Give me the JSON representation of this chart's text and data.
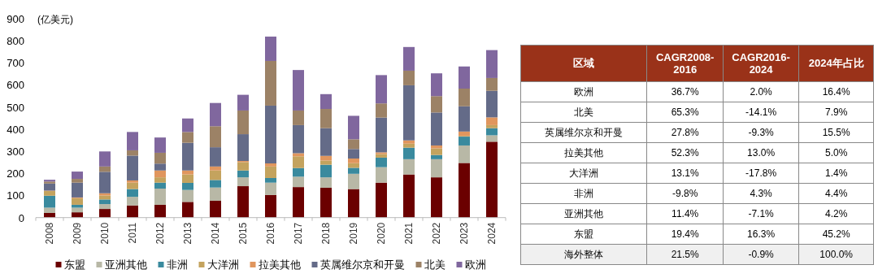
{
  "chart_data": [
    {
      "type": "bar",
      "stacked": true,
      "ylabel": "(亿美元)",
      "ylim": [
        0,
        900
      ],
      "yticks": [
        0,
        100,
        200,
        300,
        400,
        500,
        600,
        700,
        800,
        900
      ],
      "legend": "bottom",
      "grid": false,
      "categories": [
        "2008",
        "2009",
        "2010",
        "2011",
        "2012",
        "2013",
        "2014",
        "2015",
        "2016",
        "2017",
        "2018",
        "2019",
        "2020",
        "2021",
        "2022",
        "2023",
        "2024"
      ],
      "series": [
        {
          "name": "东盟",
          "color": "#6b0000",
          "values": [
            21,
            24,
            39,
            55,
            58,
            71,
            76,
            142,
            102,
            138,
            135,
            129,
            158,
            195,
            182,
            247,
            343
          ]
        },
        {
          "name": "亚洲其他",
          "color": "#b8b8a6",
          "values": [
            24,
            21,
            22,
            39,
            73,
            54,
            60,
            40,
            56,
            47,
            47,
            69,
            70,
            69,
            82,
            79,
            29
          ]
        },
        {
          "name": "非洲",
          "color": "#3a8a9e",
          "values": [
            54,
            13,
            21,
            35,
            27,
            32,
            34,
            31,
            21,
            39,
            57,
            27,
            43,
            52,
            19,
            40,
            32
          ]
        },
        {
          "name": "大洋洲",
          "color": "#c4a35e",
          "values": [
            21,
            30,
            18,
            29,
            24,
            38,
            43,
            38,
            52,
            53,
            19,
            21,
            16,
            18,
            30,
            3,
            14
          ]
        },
        {
          "name": "拉美其他",
          "color": "#e0965e",
          "values": [
            2,
            3,
            10,
            10,
            31,
            18,
            18,
            5,
            14,
            14,
            21,
            21,
            8,
            15,
            13,
            20,
            35
          ]
        },
        {
          "name": "英属维尔京和开曼",
          "color": "#646b88",
          "values": [
            32,
            67,
            97,
            112,
            31,
            125,
            87,
            121,
            261,
            127,
            125,
            43,
            157,
            249,
            149,
            114,
            120
          ]
        },
        {
          "name": "北美",
          "color": "#9c8266",
          "values": [
            9,
            17,
            24,
            24,
            49,
            49,
            95,
            107,
            202,
            66,
            87,
            44,
            64,
            66,
            74,
            80,
            58
          ]
        },
        {
          "name": "欧洲",
          "color": "#80679e",
          "values": [
            8,
            33,
            68,
            83,
            69,
            61,
            105,
            71,
            110,
            183,
            67,
            106,
            128,
            107,
            103,
            100,
            126
          ]
        }
      ]
    },
    {
      "type": "other",
      "ylabel": "区域",
      "color": "#9a3219",
      "categories": [
        "CAGR2008-2016",
        "CAGR2016-2024",
        "2024年占比"
      ],
      "y_categories": [
        "欧洲",
        "北美",
        "英属维尔京和开曼",
        "拉美其他",
        "大洋洲",
        "非洲",
        "亚洲其他",
        "东盟",
        "海外整体"
      ],
      "cell_labels": [
        [
          "36.7%",
          "2.0%",
          "16.4%"
        ],
        [
          "65.3%",
          "-14.1%",
          "7.9%"
        ],
        [
          "27.8%",
          "-9.3%",
          "15.5%"
        ],
        [
          "52.3%",
          "13.0%",
          "5.0%"
        ],
        [
          "13.1%",
          "-17.8%",
          "1.4%"
        ],
        [
          "-9.8%",
          "4.3%",
          "4.4%"
        ],
        [
          "11.4%",
          "-7.1%",
          "4.2%"
        ],
        [
          "19.4%",
          "16.3%",
          "45.2%"
        ],
        [
          "21.5%",
          "-0.9%",
          "100.0%"
        ]
      ]
    }
  ]
}
